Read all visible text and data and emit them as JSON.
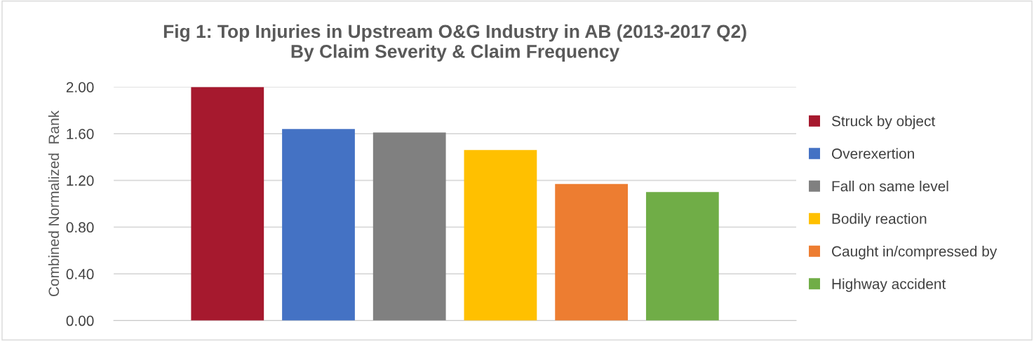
{
  "chart_data": {
    "type": "bar",
    "title": "Fig 1: Top Injuries in Upstream O&G Industry in AB (2013-2017 Q2)\nBy Claim Severity & Claim Frequency",
    "ylabel": "Combined Normalized  Rank",
    "categories": [
      null
    ],
    "series": [
      {
        "name": "Struck by object",
        "color": "#a6192e",
        "values": [
          2.0
        ]
      },
      {
        "name": "Overexertion",
        "color": "#4472c4",
        "values": [
          1.64
        ]
      },
      {
        "name": "Fall on same level",
        "color": "#808080",
        "values": [
          1.61
        ]
      },
      {
        "name": "Bodily reaction",
        "color": "#ffc000",
        "values": [
          1.46
        ]
      },
      {
        "name": "Caught in/compressed by",
        "color": "#ed7d31",
        "values": [
          1.17
        ]
      },
      {
        "name": "Highway accident",
        "color": "#70ad47",
        "values": [
          1.1
        ]
      }
    ],
    "ylim": [
      0,
      2
    ],
    "yticks": [
      {
        "value": 0,
        "label": "0.00"
      },
      {
        "value": 0.4,
        "label": "0.40"
      },
      {
        "value": 0.8,
        "label": "0.80"
      },
      {
        "value": 1.2,
        "label": "1.20"
      },
      {
        "value": 1.6,
        "label": "1.60"
      },
      {
        "value": 2,
        "label": "2.00"
      }
    ],
    "grid": "y",
    "legend": "right"
  }
}
